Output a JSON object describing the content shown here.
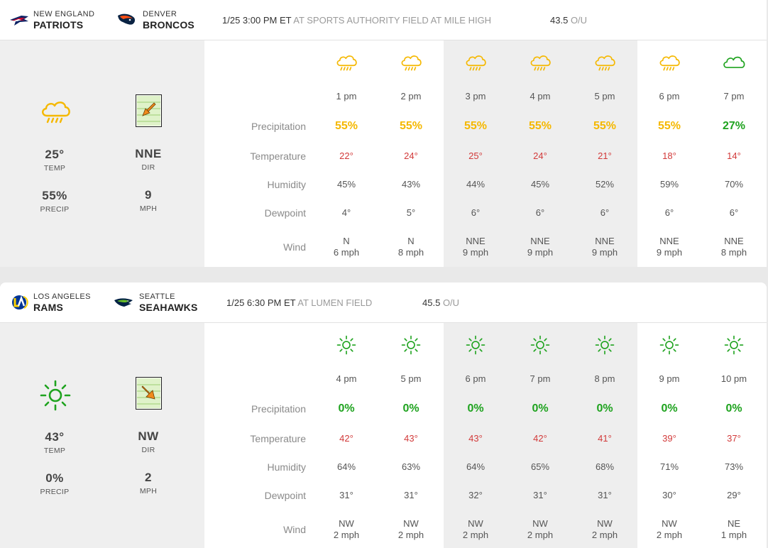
{
  "colors": {
    "rain_yellow": "#f5b800",
    "clear_green": "#1fa31f",
    "temp_red": "#d23a3a"
  },
  "games": [
    {
      "away": {
        "city": "NEW ENGLAND",
        "name": "PATRIOTS",
        "logo": "patriots-logo"
      },
      "home": {
        "city": "DENVER",
        "name": "BRONCOS",
        "logo": "broncos-logo"
      },
      "datetime": "1/25 3:00 PM ET",
      "venue": "AT SPORTS AUTHORITY FIELD AT MILE HIGH",
      "ou_value": "43.5",
      "ou_label": "O/U",
      "summary": {
        "icon": "rain-cloud-icon",
        "temp": "25°",
        "temp_label": "TEMP",
        "precip": "55%",
        "precip_label": "PRECIP",
        "dir": "NNE",
        "dir_label": "DIR",
        "speed": "9",
        "speed_label": "MPH",
        "wind_arrow": "arrow-down-left-icon"
      },
      "row_labels": {
        "precipitation": "Precipitation",
        "temperature": "Temperature",
        "humidity": "Humidity",
        "dewpoint": "Dewpoint",
        "wind": "Wind"
      },
      "hours": [
        {
          "time": "1 pm",
          "icon": "rain-cloud-icon",
          "precip": "55%",
          "temp": "22°",
          "humidity": "45%",
          "dewpoint": "4°",
          "wind_dir": "N",
          "wind_speed": "6 mph"
        },
        {
          "time": "2 pm",
          "icon": "rain-cloud-icon",
          "precip": "55%",
          "temp": "24°",
          "humidity": "43%",
          "dewpoint": "5°",
          "wind_dir": "N",
          "wind_speed": "8 mph"
        },
        {
          "time": "3 pm",
          "icon": "rain-cloud-icon",
          "precip": "55%",
          "temp": "25°",
          "humidity": "44%",
          "dewpoint": "6°",
          "wind_dir": "NNE",
          "wind_speed": "9 mph"
        },
        {
          "time": "4 pm",
          "icon": "rain-cloud-icon",
          "precip": "55%",
          "temp": "24°",
          "humidity": "45%",
          "dewpoint": "6°",
          "wind_dir": "NNE",
          "wind_speed": "9 mph"
        },
        {
          "time": "5 pm",
          "icon": "rain-cloud-icon",
          "precip": "55%",
          "temp": "21°",
          "humidity": "52%",
          "dewpoint": "6°",
          "wind_dir": "NNE",
          "wind_speed": "9 mph"
        },
        {
          "time": "6 pm",
          "icon": "rain-cloud-icon",
          "precip": "55%",
          "temp": "18°",
          "humidity": "59%",
          "dewpoint": "6°",
          "wind_dir": "NNE",
          "wind_speed": "9 mph"
        },
        {
          "time": "7 pm",
          "icon": "cloud-icon",
          "precip": "27%",
          "temp": "14°",
          "humidity": "70%",
          "dewpoint": "6°",
          "wind_dir": "NNE",
          "wind_speed": "8 mph"
        }
      ]
    },
    {
      "away": {
        "city": "LOS ANGELES",
        "name": "RAMS",
        "logo": "rams-logo"
      },
      "home": {
        "city": "SEATTLE",
        "name": "SEAHAWKS",
        "logo": "seahawks-logo"
      },
      "datetime": "1/25 6:30 PM ET",
      "venue": "AT LUMEN FIELD",
      "ou_value": "45.5",
      "ou_label": "O/U",
      "summary": {
        "icon": "sun-icon",
        "temp": "43°",
        "temp_label": "TEMP",
        "precip": "0%",
        "precip_label": "PRECIP",
        "dir": "NW",
        "dir_label": "DIR",
        "speed": "2",
        "speed_label": "MPH",
        "wind_arrow": "arrow-down-right-icon"
      },
      "row_labels": {
        "precipitation": "Precipitation",
        "temperature": "Temperature",
        "humidity": "Humidity",
        "dewpoint": "Dewpoint",
        "wind": "Wind"
      },
      "hours": [
        {
          "time": "4 pm",
          "icon": "sun-icon",
          "precip": "0%",
          "temp": "42°",
          "humidity": "64%",
          "dewpoint": "31°",
          "wind_dir": "NW",
          "wind_speed": "2 mph"
        },
        {
          "time": "5 pm",
          "icon": "sun-icon",
          "precip": "0%",
          "temp": "43°",
          "humidity": "63%",
          "dewpoint": "31°",
          "wind_dir": "NW",
          "wind_speed": "2 mph"
        },
        {
          "time": "6 pm",
          "icon": "sun-icon",
          "precip": "0%",
          "temp": "43°",
          "humidity": "64%",
          "dewpoint": "32°",
          "wind_dir": "NW",
          "wind_speed": "2 mph"
        },
        {
          "time": "7 pm",
          "icon": "sun-icon",
          "precip": "0%",
          "temp": "42°",
          "humidity": "65%",
          "dewpoint": "31°",
          "wind_dir": "NW",
          "wind_speed": "2 mph"
        },
        {
          "time": "8 pm",
          "icon": "sun-icon",
          "precip": "0%",
          "temp": "41°",
          "humidity": "68%",
          "dewpoint": "31°",
          "wind_dir": "NW",
          "wind_speed": "2 mph"
        },
        {
          "time": "9 pm",
          "icon": "sun-icon",
          "precip": "0%",
          "temp": "39°",
          "humidity": "71%",
          "dewpoint": "30°",
          "wind_dir": "NW",
          "wind_speed": "2 mph"
        },
        {
          "time": "10 pm",
          "icon": "sun-icon",
          "precip": "0%",
          "temp": "37°",
          "humidity": "73%",
          "dewpoint": "29°",
          "wind_dir": "NE",
          "wind_speed": "1 mph"
        }
      ]
    }
  ]
}
